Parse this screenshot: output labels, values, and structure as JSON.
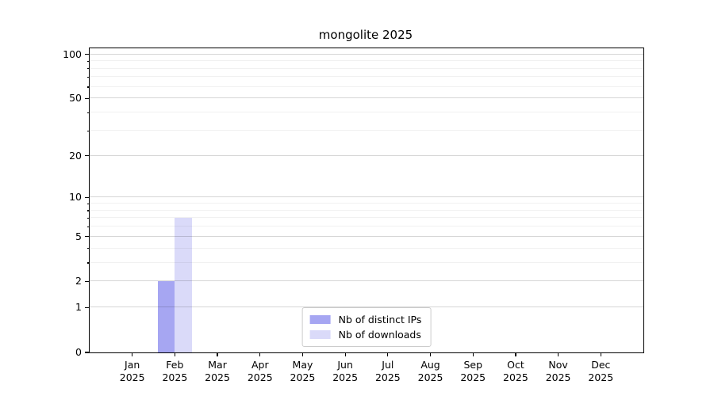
{
  "chart_data": {
    "type": "bar",
    "title": "mongolite 2025",
    "categories": [
      "Jan",
      "Feb",
      "Mar",
      "Apr",
      "May",
      "Jun",
      "Jul",
      "Aug",
      "Sep",
      "Oct",
      "Nov",
      "Dec"
    ],
    "category_year": "2025",
    "series": [
      {
        "name": "Nb of distinct IPs",
        "color": "#a6a6f2",
        "values": [
          0,
          2,
          0,
          0,
          0,
          0,
          0,
          0,
          0,
          0,
          0,
          0
        ]
      },
      {
        "name": "Nb of downloads",
        "color": "#dadaf9",
        "values": [
          0,
          7,
          0,
          0,
          0,
          0,
          0,
          0,
          0,
          0,
          0,
          0
        ]
      }
    ],
    "y_axis": {
      "scale": "log1p",
      "ticks": [
        0,
        1,
        2,
        5,
        10,
        20,
        50,
        100
      ],
      "minor_ticks": [
        3,
        4,
        6,
        7,
        8,
        9,
        30,
        40,
        60,
        70,
        80,
        90
      ],
      "top_value": 110
    },
    "legend_position": "lower center",
    "grid": "horizontal, drawn over bars",
    "xlabel": "",
    "ylabel": ""
  }
}
